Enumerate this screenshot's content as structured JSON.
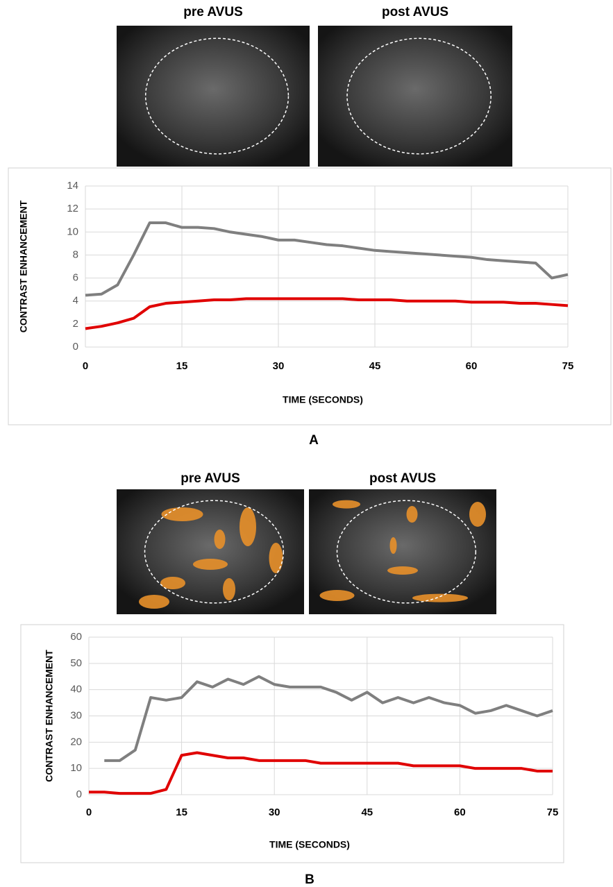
{
  "chart_data": [
    {
      "type": "line",
      "image_titles": [
        "pre AVUS",
        "post AVUS"
      ],
      "panel_label": "A",
      "y_label": "CONTRAST ENHANCEMENT",
      "x_label": "TIME (SECONDS)",
      "x": [
        0,
        2.5,
        5,
        7.5,
        10,
        12.5,
        15,
        17.5,
        20,
        22.5,
        25,
        27.5,
        30,
        32.5,
        35,
        37.5,
        40,
        42.5,
        45,
        47.5,
        50,
        52.5,
        55,
        57.5,
        60,
        62.5,
        65,
        67.5,
        70,
        72.5,
        75
      ],
      "series": [
        {
          "color": "#7f7f7f",
          "values": [
            4.5,
            4.6,
            5.4,
            8.0,
            10.8,
            10.8,
            10.4,
            10.4,
            10.3,
            10.0,
            9.8,
            9.6,
            9.3,
            9.3,
            9.1,
            8.9,
            8.8,
            8.6,
            8.4,
            8.3,
            8.2,
            8.1,
            8.0,
            7.9,
            7.8,
            7.6,
            7.5,
            7.4,
            7.3,
            6.0,
            6.3
          ]
        },
        {
          "color": "#e00000",
          "values": [
            1.6,
            1.8,
            2.1,
            2.5,
            3.5,
            3.8,
            3.9,
            4.0,
            4.1,
            4.1,
            4.2,
            4.2,
            4.2,
            4.2,
            4.2,
            4.2,
            4.2,
            4.1,
            4.1,
            4.1,
            4.0,
            4.0,
            4.0,
            4.0,
            3.9,
            3.9,
            3.9,
            3.8,
            3.8,
            3.7,
            3.6
          ]
        }
      ],
      "xlim": [
        0,
        75
      ],
      "xticks": [
        0,
        15,
        30,
        45,
        60,
        75
      ],
      "ylim": [
        0,
        14
      ],
      "yticks": [
        0,
        2,
        4,
        6,
        8,
        10,
        12,
        14
      ],
      "grid": true
    },
    {
      "type": "line",
      "image_titles": [
        "pre AVUS",
        "post AVUS"
      ],
      "panel_label": "B",
      "y_label": "CONTRAST ENHANCEMENT",
      "x_label": "TIME (SECONDS)",
      "x": [
        0,
        2.5,
        5,
        7.5,
        10,
        12.5,
        15,
        17.5,
        20,
        22.5,
        25,
        27.5,
        30,
        32.5,
        35,
        37.5,
        40,
        42.5,
        45,
        47.5,
        50,
        52.5,
        55,
        57.5,
        60,
        62.5,
        65,
        67.5,
        70,
        72.5,
        75
      ],
      "series": [
        {
          "color": "#7f7f7f",
          "values": [
            null,
            13,
            13,
            17,
            37,
            36,
            37,
            43,
            41,
            44,
            42,
            45,
            42,
            41,
            41,
            41,
            39,
            36,
            39,
            35,
            37,
            35,
            37,
            35,
            34,
            31,
            32,
            34,
            32,
            30,
            32
          ]
        },
        {
          "color": "#e00000",
          "values": [
            1,
            1,
            0.5,
            0.5,
            0.5,
            2,
            15,
            16,
            15,
            14,
            14,
            13,
            13,
            13,
            13,
            12,
            12,
            12,
            12,
            12,
            12,
            11,
            11,
            11,
            11,
            10,
            10,
            10,
            10,
            9,
            9
          ]
        }
      ],
      "xlim": [
        0,
        75
      ],
      "xticks": [
        0,
        15,
        30,
        45,
        60,
        75
      ],
      "ylim": [
        0,
        60
      ],
      "yticks": [
        0,
        10,
        20,
        30,
        40,
        50,
        60
      ],
      "grid": true
    }
  ]
}
